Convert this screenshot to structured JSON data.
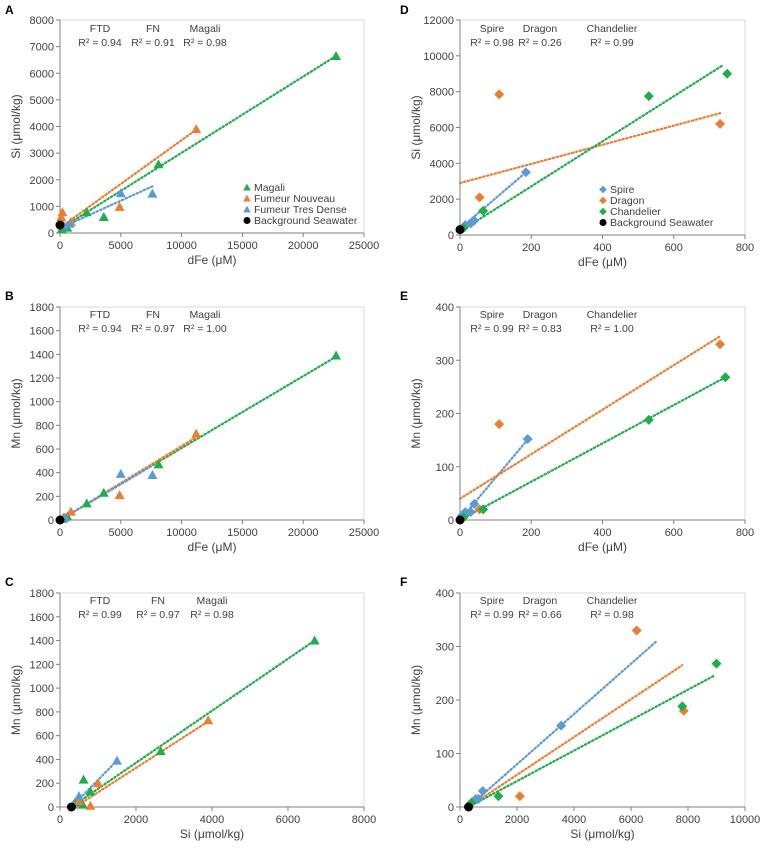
{
  "colors": {
    "green": "#1fae4b",
    "orange": "#ed7d31",
    "blue": "#5b9bd5",
    "black": "#000000",
    "axis": "#808080",
    "text": "#404040"
  },
  "chart_data": [
    {
      "panel": "A",
      "type": "scatter",
      "marker": "triangle",
      "xlabel": "dFe (μM)",
      "ylabel": "Si (μmol/kg)",
      "xlim": [
        0,
        25000
      ],
      "ylim": [
        0,
        8000
      ],
      "xticks": [
        0,
        5000,
        10000,
        15000,
        20000,
        25000
      ],
      "yticks": [
        0,
        1000,
        2000,
        3000,
        4000,
        5000,
        6000,
        7000,
        8000
      ],
      "annotations": [
        {
          "name": "FTD",
          "r2": "R² = 0.94"
        },
        {
          "name": "FN",
          "r2": "R² = 0.91"
        },
        {
          "name": "Magali",
          "r2": "R² = 0.98"
        }
      ],
      "legend": [
        "Magali",
        "Fumeur Nouveau",
        "Fumeur Tres Dense",
        "Background Seawater"
      ],
      "legend_position": "bottom-right",
      "series": [
        {
          "name": "Magali",
          "color": "green",
          "points": [
            [
              22700,
              6650
            ],
            [
              8100,
              2580
            ],
            [
              3600,
              600
            ],
            [
              2200,
              780
            ],
            [
              600,
              200
            ],
            [
              150,
              150
            ]
          ],
          "trend": [
            [
              0,
              150
            ],
            [
              22700,
              6650
            ]
          ]
        },
        {
          "name": "Fumeur Nouveau",
          "color": "orange",
          "points": [
            [
              11200,
              3900
            ],
            [
              4900,
              980
            ],
            [
              900,
              420
            ],
            [
              200,
              780
            ],
            [
              100,
              600
            ]
          ],
          "trend": [
            [
              0,
              200
            ],
            [
              11200,
              3880
            ]
          ]
        },
        {
          "name": "Fumeur Tres Dense",
          "color": "blue",
          "points": [
            [
              7600,
              1480
            ],
            [
              5000,
              1500
            ],
            [
              800,
              350
            ],
            [
              300,
              280
            ]
          ],
          "trend": [
            [
              0,
              180
            ],
            [
              7600,
              1750
            ]
          ]
        },
        {
          "name": "Background Seawater",
          "color": "black",
          "marker": "circle",
          "points": [
            [
              0,
              300
            ]
          ]
        }
      ]
    },
    {
      "panel": "B",
      "type": "scatter",
      "marker": "triangle",
      "xlabel": "dFe (μM)",
      "ylabel": "Mn (μmol/kg)",
      "xlim": [
        0,
        25000
      ],
      "ylim": [
        0,
        1800
      ],
      "xticks": [
        0,
        5000,
        10000,
        15000,
        20000,
        25000
      ],
      "yticks": [
        0,
        200,
        400,
        600,
        800,
        1000,
        1200,
        1400,
        1600,
        1800
      ],
      "annotations": [
        {
          "name": "FTD",
          "r2": "R² = 0.94"
        },
        {
          "name": "FN",
          "r2": "R² = 0.97"
        },
        {
          "name": "Magali",
          "r2": "R² = 1.00"
        }
      ],
      "series": [
        {
          "name": "Magali",
          "color": "green",
          "points": [
            [
              22700,
              1390
            ],
            [
              8100,
              470
            ],
            [
              3600,
              230
            ],
            [
              2200,
              140
            ],
            [
              600,
              30
            ],
            [
              200,
              10
            ]
          ],
          "trend": [
            [
              0,
              0
            ],
            [
              22700,
              1380
            ]
          ]
        },
        {
          "name": "Fumeur Nouveau",
          "color": "orange",
          "points": [
            [
              11200,
              730
            ],
            [
              4900,
              210
            ],
            [
              900,
              70
            ],
            [
              300,
              20
            ]
          ],
          "trend": [
            [
              0,
              0
            ],
            [
              11200,
              700
            ]
          ]
        },
        {
          "name": "Fumeur Tres Dense",
          "color": "blue",
          "points": [
            [
              7600,
              380
            ],
            [
              5000,
              390
            ],
            [
              400,
              20
            ]
          ],
          "trend": [
            [
              0,
              0
            ],
            [
              7600,
              460
            ]
          ]
        },
        {
          "name": "Background Seawater",
          "color": "black",
          "marker": "circle",
          "points": [
            [
              0,
              0
            ]
          ]
        }
      ]
    },
    {
      "panel": "C",
      "type": "scatter",
      "marker": "triangle",
      "xlabel": "Si (μmol/kg)",
      "ylabel": "Mn (μmol/kg)",
      "xlim": [
        0,
        8000
      ],
      "ylim": [
        0,
        1800
      ],
      "xticks": [
        0,
        2000,
        4000,
        6000,
        8000
      ],
      "yticks": [
        0,
        200,
        400,
        600,
        800,
        1000,
        1200,
        1400,
        1600,
        1800
      ],
      "annotations": [
        {
          "name": "FTD",
          "r2": "R² = 0.99"
        },
        {
          "name": "FN",
          "r2": "R² = 0.97"
        },
        {
          "name": "Magali",
          "r2": "R² = 0.98"
        }
      ],
      "series": [
        {
          "name": "Magali",
          "color": "green",
          "points": [
            [
              6700,
              1400
            ],
            [
              2650,
              470
            ],
            [
              800,
              130
            ],
            [
              620,
              230
            ],
            [
              600,
              20
            ],
            [
              400,
              40
            ]
          ],
          "trend": [
            [
              300,
              0
            ],
            [
              6700,
              1400
            ]
          ]
        },
        {
          "name": "Fumeur Nouveau",
          "color": "orange",
          "points": [
            [
              3900,
              730
            ],
            [
              1000,
              200
            ],
            [
              800,
              10
            ],
            [
              500,
              50
            ]
          ],
          "trend": [
            [
              400,
              0
            ],
            [
              3900,
              720
            ]
          ]
        },
        {
          "name": "Fumeur Tres Dense",
          "color": "blue",
          "points": [
            [
              1500,
              390
            ],
            [
              500,
              90
            ],
            [
              350,
              20
            ]
          ],
          "trend": [
            [
              300,
              0
            ],
            [
              1500,
              390
            ]
          ]
        },
        {
          "name": "Background Seawater",
          "color": "black",
          "marker": "circle",
          "points": [
            [
              300,
              0
            ]
          ]
        }
      ]
    },
    {
      "panel": "D",
      "type": "scatter",
      "marker": "diamond",
      "xlabel": "dFe (μM)",
      "ylabel": "Si (μmol/kg)",
      "xlim": [
        0,
        800
      ],
      "ylim": [
        0,
        12000
      ],
      "xticks": [
        0,
        200,
        400,
        600,
        800
      ],
      "yticks": [
        0,
        2000,
        4000,
        6000,
        8000,
        10000,
        12000
      ],
      "annotations": [
        {
          "name": "Spire",
          "r2": "R² = 0.98"
        },
        {
          "name": "Dragon",
          "r2": "R² = 0.26"
        },
        {
          "name": "Chandelier",
          "r2": "R² = 0.99"
        }
      ],
      "legend": [
        "Spire",
        "Dragon",
        "Chandelier",
        "Background Seawater"
      ],
      "legend_position": "bottom-right",
      "series": [
        {
          "name": "Spire",
          "color": "blue",
          "points": [
            [
              185,
              3500
            ],
            [
              40,
              800
            ],
            [
              30,
              650
            ],
            [
              15,
              550
            ],
            [
              10,
              400
            ]
          ],
          "trend": [
            [
              0,
              350
            ],
            [
              185,
              3500
            ]
          ]
        },
        {
          "name": "Dragon",
          "color": "orange",
          "points": [
            [
              110,
              7850
            ],
            [
              730,
              6200
            ],
            [
              55,
              2100
            ]
          ],
          "trend": [
            [
              0,
              2900
            ],
            [
              730,
              6800
            ]
          ]
        },
        {
          "name": "Chandelier",
          "color": "green",
          "points": [
            [
              750,
              9000
            ],
            [
              530,
              7750
            ],
            [
              65,
              1350
            ],
            [
              10,
              400
            ]
          ],
          "trend": [
            [
              0,
              200
            ],
            [
              740,
              9500
            ]
          ]
        },
        {
          "name": "Background Seawater",
          "color": "black",
          "marker": "circle",
          "points": [
            [
              0,
              300
            ]
          ]
        }
      ]
    },
    {
      "panel": "E",
      "type": "scatter",
      "marker": "diamond",
      "xlabel": "dFe (μM)",
      "ylabel": "Mn (μmol/kg)",
      "xlim": [
        0,
        800
      ],
      "ylim": [
        0,
        400
      ],
      "xticks": [
        0,
        200,
        400,
        600,
        800
      ],
      "yticks": [
        0,
        100,
        200,
        300,
        400
      ],
      "annotations": [
        {
          "name": "Spire",
          "r2": "R² = 0.99"
        },
        {
          "name": "Dragon",
          "r2": "R² = 0.83"
        },
        {
          "name": "Chandelier",
          "r2": "R² = 1.00"
        }
      ],
      "series": [
        {
          "name": "Spire",
          "color": "blue",
          "points": [
            [
              190,
              152
            ],
            [
              40,
              30
            ],
            [
              30,
              15
            ],
            [
              15,
              15
            ],
            [
              5,
              8
            ]
          ],
          "trend": [
            [
              0,
              0
            ],
            [
              195,
              155
            ]
          ]
        },
        {
          "name": "Dragon",
          "color": "orange",
          "points": [
            [
              730,
              330
            ],
            [
              110,
              180
            ],
            [
              55,
              20
            ]
          ],
          "trend": [
            [
              0,
              40
            ],
            [
              730,
              345
            ]
          ]
        },
        {
          "name": "Chandelier",
          "color": "green",
          "points": [
            [
              745,
              268
            ],
            [
              530,
              188
            ],
            [
              65,
              20
            ],
            [
              10,
              5
            ]
          ],
          "trend": [
            [
              0,
              0
            ],
            [
              745,
              268
            ]
          ]
        },
        {
          "name": "Background Seawater",
          "color": "black",
          "marker": "circle",
          "points": [
            [
              0,
              0
            ]
          ]
        }
      ]
    },
    {
      "panel": "F",
      "type": "scatter",
      "marker": "diamond",
      "xlabel": "Si (μmol/kg)",
      "ylabel": "Mn (μmol/kg)",
      "xlim": [
        0,
        10000
      ],
      "ylim": [
        0,
        400
      ],
      "xticks": [
        0,
        2000,
        4000,
        6000,
        8000,
        10000
      ],
      "yticks": [
        0,
        100,
        200,
        300,
        400
      ],
      "annotations": [
        {
          "name": "Spire",
          "r2": "R² = 0.99"
        },
        {
          "name": "Dragon",
          "r2": "R² = 0.66"
        },
        {
          "name": "Chandelier",
          "r2": "R² = 0.98"
        }
      ],
      "series": [
        {
          "name": "Spire",
          "color": "blue",
          "points": [
            [
              3550,
              152
            ],
            [
              800,
              30
            ],
            [
              650,
              15
            ],
            [
              550,
              15
            ],
            [
              400,
              8
            ]
          ],
          "trend": [
            [
              300,
              0
            ],
            [
              6900,
              310
            ]
          ]
        },
        {
          "name": "Dragon",
          "color": "orange",
          "points": [
            [
              6200,
              330
            ],
            [
              7850,
              180
            ],
            [
              2100,
              20
            ]
          ],
          "trend": [
            [
              300,
              0
            ],
            [
              7800,
              265
            ]
          ]
        },
        {
          "name": "Chandelier",
          "color": "green",
          "points": [
            [
              9000,
              268
            ],
            [
              7800,
              188
            ],
            [
              1350,
              20
            ],
            [
              400,
              8
            ]
          ],
          "trend": [
            [
              300,
              0
            ],
            [
              8900,
              245
            ]
          ]
        },
        {
          "name": "Background Seawater",
          "color": "black",
          "marker": "circle",
          "points": [
            [
              300,
              0
            ]
          ]
        }
      ]
    }
  ]
}
